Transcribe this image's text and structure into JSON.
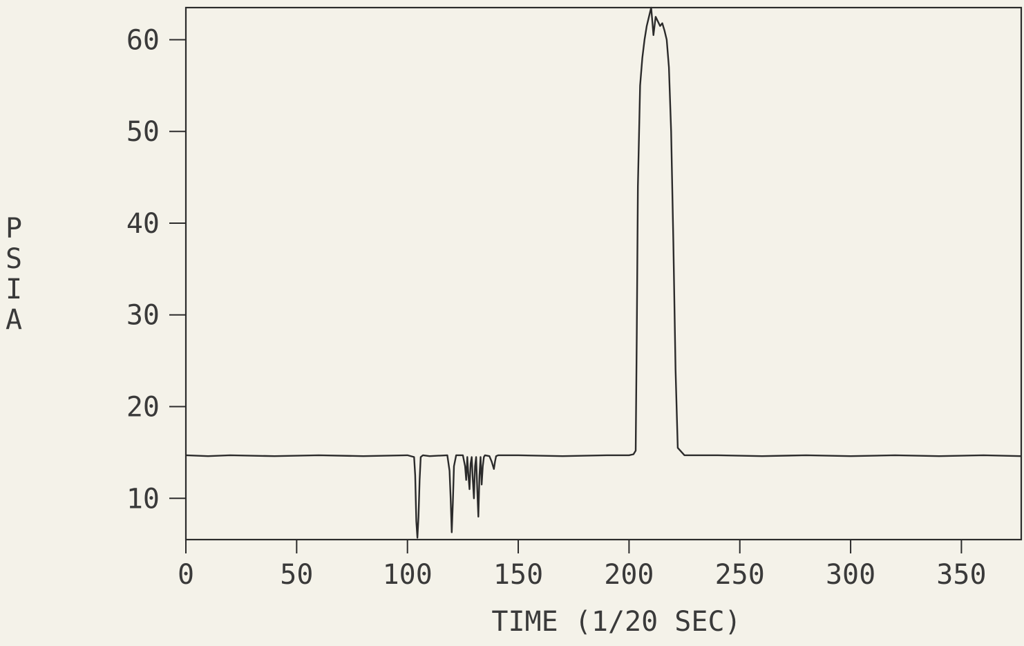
{
  "chart_data": {
    "type": "line",
    "title": "",
    "xlabel": "TIME (1/20 SEC)",
    "ylabel": "PSIA",
    "xlim": [
      0,
      377
    ],
    "ylim": [
      5.5,
      63.5
    ],
    "xticks": [
      0,
      50,
      100,
      150,
      200,
      250,
      300,
      350
    ],
    "yticks": [
      10,
      20,
      30,
      40,
      50,
      60
    ],
    "grid": false,
    "legend": "none",
    "line_color": "#2b2b2b",
    "series": [
      {
        "x": [
          0,
          10,
          20,
          40,
          60,
          80,
          100,
          103,
          103.5,
          104,
          104.5,
          105,
          105.5,
          106,
          107,
          110,
          118,
          119,
          119.5,
          120,
          120.5,
          121,
          122,
          125,
          126,
          126.5,
          127,
          127.5,
          128,
          128.5,
          129,
          129.5,
          130,
          130.5,
          131,
          131.5,
          132,
          132.5,
          133,
          133.5,
          134,
          134.5,
          135,
          137,
          138,
          139,
          139.5,
          140,
          141,
          150,
          170,
          190,
          200,
          202,
          203,
          203.5,
          204,
          205,
          206,
          207,
          208,
          209,
          210,
          210.5,
          211,
          212,
          213,
          214,
          215,
          216,
          217,
          218,
          219,
          220,
          221,
          222,
          225,
          240,
          260,
          280,
          300,
          320,
          340,
          360,
          377
        ],
        "values": [
          14.7,
          14.6,
          14.7,
          14.6,
          14.7,
          14.6,
          14.7,
          14.5,
          12.5,
          7.5,
          5.7,
          8.0,
          12.0,
          14.5,
          14.7,
          14.6,
          14.7,
          13.0,
          10.0,
          6.3,
          9.5,
          13.5,
          14.7,
          14.7,
          13.5,
          12.0,
          14.5,
          12.5,
          11.0,
          13.8,
          14.5,
          12.0,
          10.0,
          13.5,
          14.5,
          11.0,
          8.0,
          12.5,
          14.5,
          11.5,
          13.5,
          14.5,
          14.7,
          14.6,
          14.0,
          13.2,
          14.0,
          14.6,
          14.7,
          14.7,
          14.6,
          14.7,
          14.7,
          14.8,
          15.2,
          28.0,
          44.0,
          55.0,
          58.0,
          60.0,
          61.5,
          62.5,
          63.5,
          62.0,
          60.5,
          62.5,
          62.0,
          61.5,
          61.8,
          61.0,
          60.0,
          57.0,
          50.0,
          38.0,
          24.0,
          15.5,
          14.7,
          14.7,
          14.6,
          14.7,
          14.6,
          14.7,
          14.6,
          14.7,
          14.6
        ]
      }
    ]
  }
}
